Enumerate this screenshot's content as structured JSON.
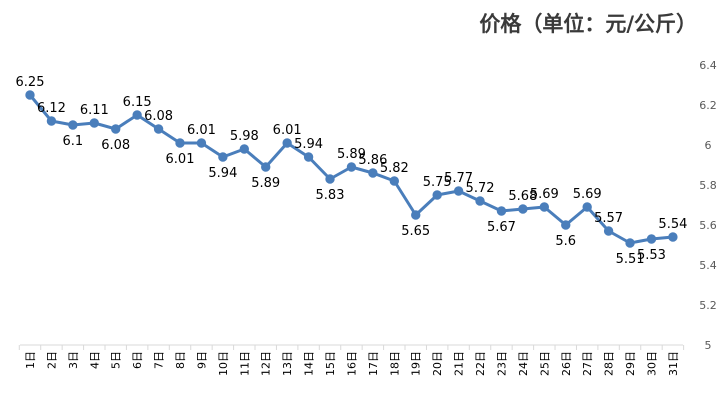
{
  "chart_data": {
    "type": "line",
    "title": "价格（单位：元/公斤）",
    "xlabel": "",
    "ylabel": "",
    "categories": [
      "1日",
      "2日",
      "3日",
      "4日",
      "5日",
      "6日",
      "7日",
      "8日",
      "9日",
      "10日",
      "11日",
      "12日",
      "13日",
      "14日",
      "15日",
      "16日",
      "17日",
      "18日",
      "19日",
      "20日",
      "21日",
      "22日",
      "23日",
      "24日",
      "25日",
      "26日",
      "27日",
      "28日",
      "29日",
      "30日",
      "31日"
    ],
    "values": [
      6.25,
      6.12,
      6.1,
      6.11,
      6.08,
      6.15,
      6.08,
      6.01,
      6.01,
      5.94,
      5.98,
      5.89,
      6.01,
      5.94,
      5.83,
      5.89,
      5.86,
      5.82,
      5.65,
      5.75,
      5.77,
      5.72,
      5.67,
      5.68,
      5.69,
      5.6,
      5.69,
      5.57,
      5.51,
      5.53,
      5.54
    ],
    "value_labels": [
      "6.25",
      "6.12",
      "6.1",
      "6.11",
      "6.08",
      "6.15",
      "6.08",
      "6.01",
      "6.01",
      "5.94",
      "5.98",
      "5.89",
      "6.01",
      "5.94",
      "5.83",
      "5.89",
      "5.86",
      "5.82",
      "5.65",
      "5.75",
      "5.77",
      "5.72",
      "5.67",
      "5.68",
      "5.69",
      "5.6",
      "5.69",
      "5.57",
      "5.51",
      "5.53",
      "5.54"
    ],
    "label_position": [
      "above",
      "above",
      "below",
      "above",
      "below",
      "above",
      "above",
      "below",
      "above",
      "below",
      "above",
      "below",
      "above",
      "above",
      "below",
      "above",
      "above",
      "above",
      "below",
      "above",
      "above",
      "above",
      "below",
      "above",
      "above",
      "below",
      "above",
      "above",
      "below",
      "below",
      "above"
    ],
    "ylim": [
      5,
      6.4
    ],
    "yticks": [
      "5",
      "5.2",
      "5.4",
      "5.6",
      "5.8",
      "6",
      "6.2",
      "6.4"
    ],
    "y_axis_side": "right",
    "grid": false,
    "legend": "none",
    "colors": {
      "line": "#4a7ebb",
      "marker": "#4a7ebb",
      "text": "#000000",
      "axis": "#d9d9d9",
      "tick_text": "#595959"
    }
  }
}
